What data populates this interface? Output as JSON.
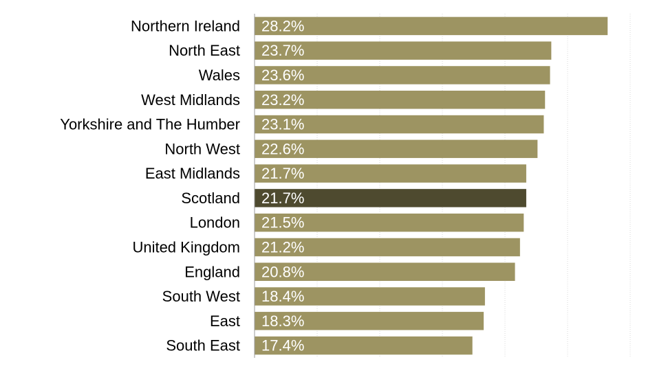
{
  "chart_data": {
    "type": "bar",
    "orientation": "horizontal",
    "categories": [
      "Northern Ireland",
      "North East",
      "Wales",
      "West Midlands",
      "Yorkshire and The Humber",
      "North West",
      "East Midlands",
      "Scotland",
      "London",
      "United Kingdom",
      "England",
      "South West",
      "East",
      "South East"
    ],
    "values": [
      28.2,
      23.7,
      23.6,
      23.2,
      23.1,
      22.6,
      21.7,
      21.7,
      21.5,
      21.2,
      20.8,
      18.4,
      18.3,
      17.4
    ],
    "value_labels": [
      "28.2%",
      "23.7%",
      "23.6%",
      "23.2%",
      "23.1%",
      "22.6%",
      "21.7%",
      "21.7%",
      "21.5%",
      "21.2%",
      "20.8%",
      "18.4%",
      "18.3%",
      "17.4%"
    ],
    "highlight_category": "Scotland",
    "xlim": [
      0,
      30
    ],
    "grid": true,
    "colors": {
      "bar": "#9d9462",
      "highlight": "#4e4a2f",
      "grid": "#d9d9d9",
      "value_text": "#ffffff"
    },
    "title": "",
    "xlabel": "",
    "ylabel": ""
  }
}
